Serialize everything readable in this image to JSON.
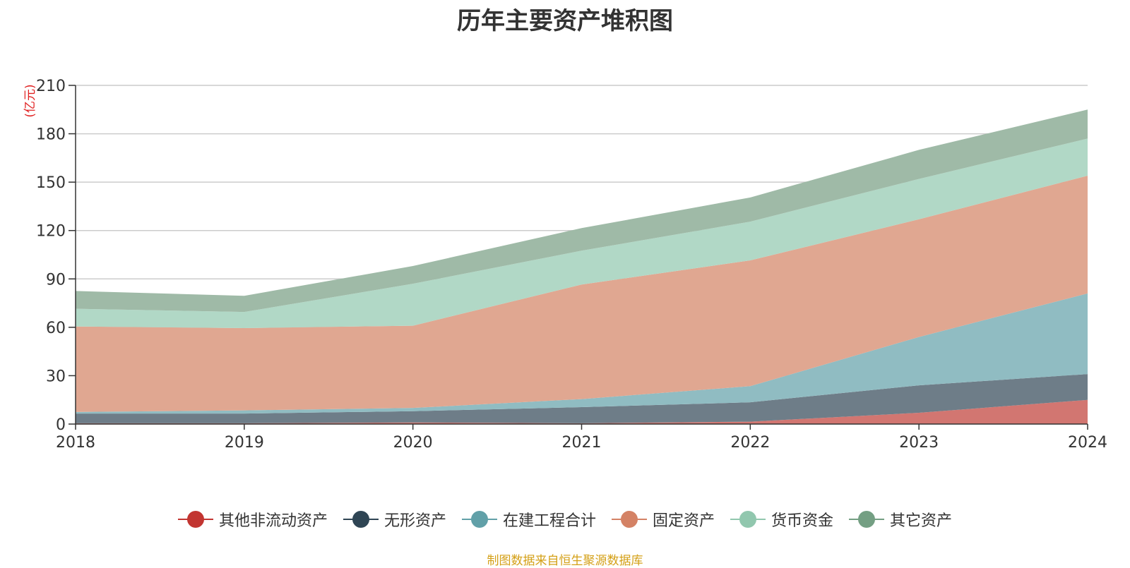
{
  "chart_data": {
    "type": "area",
    "stacked": true,
    "title": "历年主要资产堆积图",
    "unit_label": "(亿元)",
    "x": [
      "2018",
      "2019",
      "2020",
      "2021",
      "2022",
      "2023",
      "2024"
    ],
    "ylim": [
      0,
      210
    ],
    "yticks": [
      0,
      30,
      60,
      90,
      120,
      150,
      180,
      210
    ],
    "grid": true,
    "legend_position": "bottom",
    "series": [
      {
        "name": "其他非流动资产",
        "color": "#c23531",
        "fill": "#d27671",
        "values": [
          0.5,
          0.5,
          1,
          0.5,
          1.5,
          7,
          15
        ]
      },
      {
        "name": "无形资产",
        "color": "#2f4554",
        "fill": "#6e7d88",
        "values": [
          6,
          6,
          7,
          10,
          12,
          17,
          16
        ]
      },
      {
        "name": "在建工程合计",
        "color": "#61a0a8",
        "fill": "#90bcc2",
        "values": [
          1,
          2,
          2,
          5,
          10,
          30,
          50
        ]
      },
      {
        "name": "固定资产",
        "color": "#d48265",
        "fill": "#e0a791",
        "values": [
          53,
          51,
          51,
          71,
          78,
          73,
          73
        ]
      },
      {
        "name": "货币资金",
        "color": "#91c7ae",
        "fill": "#b1d8c6",
        "values": [
          11,
          10,
          26,
          21,
          24,
          25,
          23
        ]
      },
      {
        "name": "其它资产",
        "color": "#749f83",
        "fill": "#9fbaa7",
        "values": [
          11,
          10,
          11,
          14,
          15,
          18,
          18
        ]
      }
    ],
    "source": "制图数据来自恒生聚源数据库"
  }
}
